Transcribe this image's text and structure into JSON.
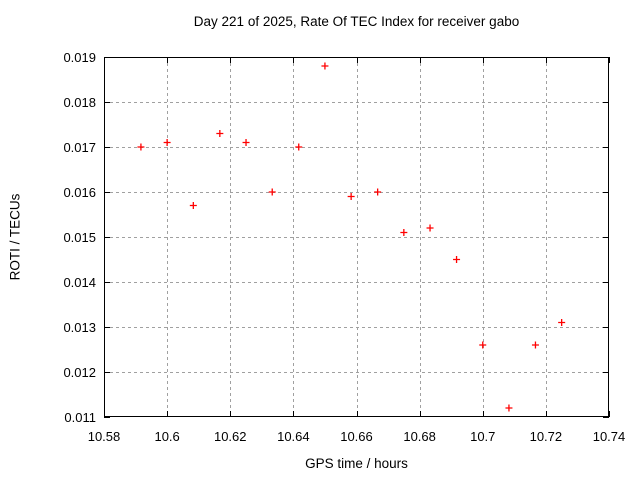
{
  "chart_data": {
    "type": "scatter",
    "title": "Day 221 of 2025, Rate Of TEC Index for receiver gabo",
    "xlabel": "GPS time / hours",
    "ylabel": "ROTI / TECUs",
    "xlim": [
      10.58,
      10.74
    ],
    "ylim": [
      0.011,
      0.019
    ],
    "grid": true,
    "legend": false,
    "marker": "plus-cross",
    "xticks": [
      {
        "value": 10.58,
        "label": "10.58"
      },
      {
        "value": 10.6,
        "label": "10.6"
      },
      {
        "value": 10.62,
        "label": "10.62"
      },
      {
        "value": 10.64,
        "label": "10.64"
      },
      {
        "value": 10.66,
        "label": "10.66"
      },
      {
        "value": 10.68,
        "label": "10.68"
      },
      {
        "value": 10.7,
        "label": "10.7"
      },
      {
        "value": 10.72,
        "label": "10.72"
      },
      {
        "value": 10.74,
        "label": "10.74"
      }
    ],
    "yticks": [
      {
        "value": 0.011,
        "label": "0.011"
      },
      {
        "value": 0.012,
        "label": "0.012"
      },
      {
        "value": 0.013,
        "label": "0.013"
      },
      {
        "value": 0.014,
        "label": "0.014"
      },
      {
        "value": 0.015,
        "label": "0.015"
      },
      {
        "value": 0.016,
        "label": "0.016"
      },
      {
        "value": 0.017,
        "label": "0.017"
      },
      {
        "value": 0.018,
        "label": "0.018"
      },
      {
        "value": 0.019,
        "label": "0.019"
      }
    ],
    "series": [
      {
        "name": "ROTI",
        "points": [
          [
            10.5917,
            0.017
          ],
          [
            10.6,
            0.0171
          ],
          [
            10.6083,
            0.0157
          ],
          [
            10.6167,
            0.0173
          ],
          [
            10.625,
            0.0171
          ],
          [
            10.6333,
            0.016
          ],
          [
            10.6417,
            0.017
          ],
          [
            10.65,
            0.0188
          ],
          [
            10.6583,
            0.0159
          ],
          [
            10.6667,
            0.016
          ],
          [
            10.675,
            0.0151
          ],
          [
            10.6833,
            0.0152
          ],
          [
            10.6917,
            0.0145
          ],
          [
            10.7,
            0.0126
          ],
          [
            10.7083,
            0.0112
          ],
          [
            10.7167,
            0.0126
          ],
          [
            10.725,
            0.0131
          ]
        ]
      }
    ]
  },
  "colors": {
    "background": "#ffffff",
    "axis": "#000000",
    "grid": "#a0a0a0",
    "marker": "#ff0000",
    "text": "#000000"
  }
}
